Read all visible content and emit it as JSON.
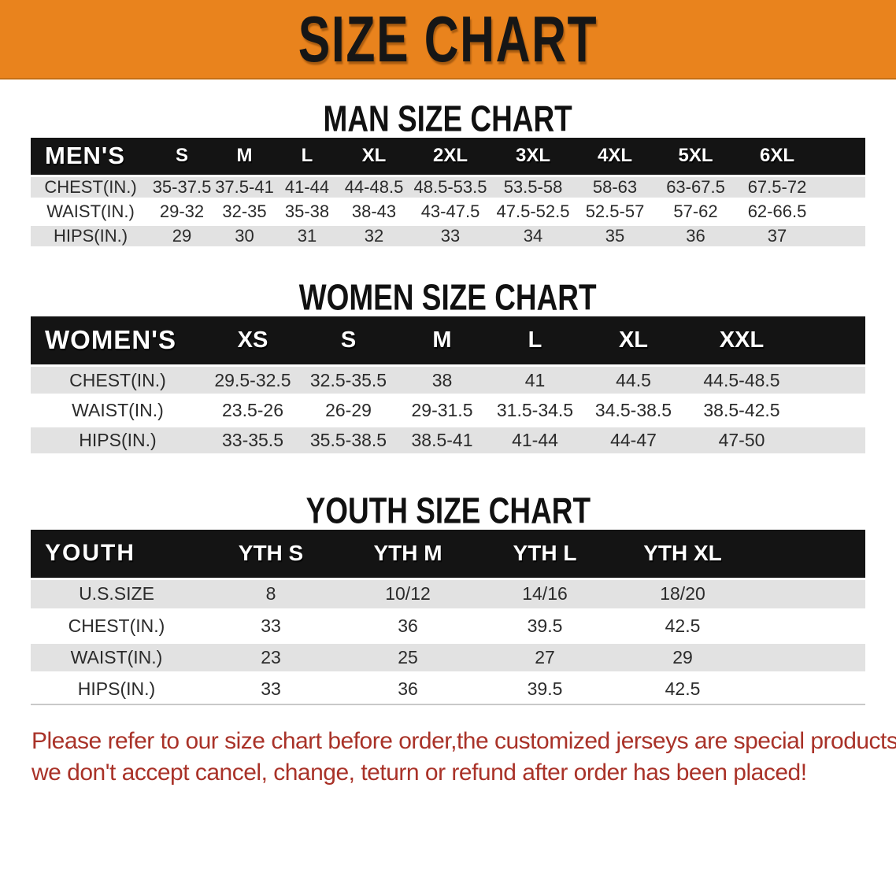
{
  "banner": {
    "title": "SIZE CHART",
    "bg_color": "#E9831D",
    "text_color": "#161616"
  },
  "colors": {
    "header_bar": "#141414",
    "stripe_gray": "#E2E2E2",
    "note_red": "#A93228"
  },
  "tables": {
    "men": {
      "heading": "MAN SIZE CHART",
      "header": [
        "MEN'S",
        "S",
        "M",
        "L",
        "XL",
        "2XL",
        "3XL",
        "4XL",
        "5XL",
        "6XL"
      ],
      "rows": [
        {
          "label": "CHEST(IN.)",
          "values": [
            "35-37.5",
            "37.5-41",
            "41-44",
            "44-48.5",
            "48.5-53.5",
            "53.5-58",
            "58-63",
            "63-67.5",
            "67.5-72"
          ]
        },
        {
          "label": "WAIST(IN.)",
          "values": [
            "29-32",
            "32-35",
            "35-38",
            "38-43",
            "43-47.5",
            "47.5-52.5",
            "52.5-57",
            "57-62",
            "62-66.5"
          ]
        },
        {
          "label": "HIPS(IN.)",
          "values": [
            "29",
            "30",
            "31",
            "32",
            "33",
            "34",
            "35",
            "36",
            "37"
          ]
        }
      ]
    },
    "women": {
      "heading": "WOMEN SIZE CHART",
      "header": [
        "WOMEN'S",
        "XS",
        "S",
        "M",
        "L",
        "XL",
        "XXL"
      ],
      "rows": [
        {
          "label": "CHEST(IN.)",
          "values": [
            "29.5-32.5",
            "32.5-35.5",
            "38",
            "41",
            "44.5",
            "44.5-48.5"
          ]
        },
        {
          "label": "WAIST(IN.)",
          "values": [
            "23.5-26",
            "26-29",
            "29-31.5",
            "31.5-34.5",
            "34.5-38.5",
            "38.5-42.5"
          ]
        },
        {
          "label": "HIPS(IN.)",
          "values": [
            "33-35.5",
            "35.5-38.5",
            "38.5-41",
            "41-44",
            "44-47",
            "47-50"
          ]
        }
      ]
    },
    "youth": {
      "heading": "YOUTH SIZE CHART",
      "header": [
        "YOUTH",
        "YTH S",
        "YTH M",
        "YTH L",
        "YTH XL"
      ],
      "rows": [
        {
          "label": "U.S.SIZE",
          "values": [
            "8",
            "10/12",
            "14/16",
            "18/20"
          ]
        },
        {
          "label": "CHEST(IN.)",
          "values": [
            "33",
            "36",
            "39.5",
            "42.5"
          ]
        },
        {
          "label": "WAIST(IN.)",
          "values": [
            "23",
            "25",
            "27",
            "29"
          ]
        },
        {
          "label": "HIPS(IN.)",
          "values": [
            "33",
            "36",
            "39.5",
            "42.5"
          ]
        }
      ]
    }
  },
  "note": {
    "line1": "Please refer to our size chart before order,the customized jerseys are special products,",
    "line2": "we don't accept cancel, change, teturn or refund after order has been placed!"
  }
}
